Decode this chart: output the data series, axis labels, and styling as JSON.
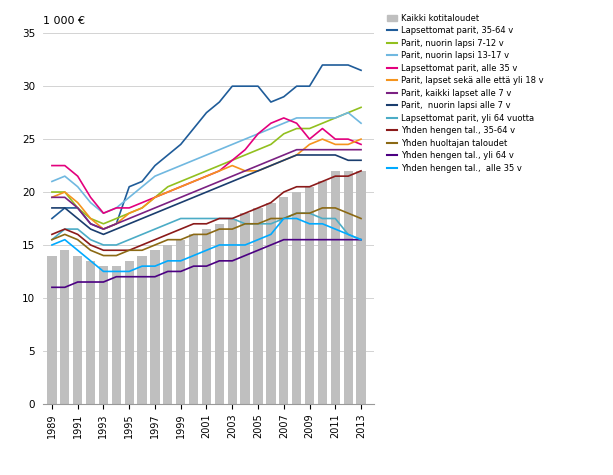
{
  "years": [
    1989,
    1990,
    1991,
    1992,
    1993,
    1994,
    1995,
    1996,
    1997,
    1998,
    1999,
    2000,
    2001,
    2002,
    2003,
    2004,
    2005,
    2006,
    2007,
    2008,
    2009,
    2010,
    2011,
    2012,
    2013
  ],
  "bar_values": [
    14.0,
    14.5,
    14.0,
    13.5,
    13.0,
    13.0,
    13.5,
    14.0,
    14.5,
    15.0,
    15.5,
    16.0,
    16.5,
    17.0,
    17.5,
    18.0,
    18.5,
    19.0,
    19.5,
    20.0,
    20.5,
    21.0,
    22.0,
    22.0,
    22.0
  ],
  "series": [
    {
      "label": "Lapsettomat parit, 35-64 v",
      "color": "#1F5C99",
      "values": [
        17.5,
        18.5,
        18.5,
        17.0,
        16.5,
        17.0,
        20.5,
        21.0,
        22.5,
        23.5,
        24.5,
        26.0,
        27.5,
        28.5,
        30.0,
        30.0,
        30.0,
        28.5,
        29.0,
        30.0,
        30.0,
        32.0,
        32.0,
        32.0,
        31.5
      ]
    },
    {
      "label": "Parit, nuorin lapsi 7-12 v",
      "color": "#92C01F",
      "values": [
        20.0,
        20.0,
        18.5,
        17.5,
        17.0,
        17.5,
        18.0,
        18.5,
        19.5,
        20.5,
        21.0,
        21.5,
        22.0,
        22.5,
        23.0,
        23.5,
        24.0,
        24.5,
        25.5,
        26.0,
        26.0,
        26.5,
        27.0,
        27.5,
        28.0
      ]
    },
    {
      "label": "Parit, nuorin lapsi 13-17 v",
      "color": "#70B8E0",
      "values": [
        21.0,
        21.5,
        20.5,
        19.0,
        18.0,
        18.5,
        19.5,
        20.5,
        21.5,
        22.0,
        22.5,
        23.0,
        23.5,
        24.0,
        24.5,
        25.0,
        25.5,
        26.0,
        26.5,
        27.0,
        27.0,
        27.0,
        27.0,
        27.5,
        26.5
      ]
    },
    {
      "label": "Lapsettomat parit, alle 35 v",
      "color": "#E3007D",
      "values": [
        22.5,
        22.5,
        21.5,
        19.5,
        18.0,
        18.5,
        18.5,
        19.0,
        19.5,
        20.0,
        20.5,
        21.0,
        21.5,
        22.0,
        23.0,
        24.0,
        25.5,
        26.5,
        27.0,
        26.5,
        25.0,
        26.0,
        25.0,
        25.0,
        24.5
      ]
    },
    {
      "label": "Parit, lapset sekä alle että yli 18 v",
      "color": "#F5941D",
      "values": [
        19.5,
        20.0,
        19.0,
        17.5,
        16.5,
        17.0,
        18.0,
        18.5,
        19.5,
        20.0,
        20.5,
        21.0,
        21.5,
        22.0,
        22.5,
        22.0,
        22.0,
        22.5,
        23.0,
        23.5,
        24.5,
        25.0,
        24.5,
        24.5,
        25.0
      ]
    },
    {
      "label": "Parit, kaikki lapset alle 7 v",
      "color": "#7B2182",
      "values": [
        19.5,
        19.5,
        18.5,
        17.0,
        16.5,
        17.0,
        17.5,
        18.0,
        18.5,
        19.0,
        19.5,
        20.0,
        20.5,
        21.0,
        21.5,
        22.0,
        22.5,
        23.0,
        23.5,
        24.0,
        24.0,
        24.0,
        24.0,
        24.0,
        24.0
      ]
    },
    {
      "label": "Parit,  nuorin lapsi alle 7 v",
      "color": "#1A3D6E",
      "values": [
        18.5,
        18.5,
        17.5,
        16.5,
        16.0,
        16.5,
        17.0,
        17.5,
        18.0,
        18.5,
        19.0,
        19.5,
        20.0,
        20.5,
        21.0,
        21.5,
        22.0,
        22.5,
        23.0,
        23.5,
        23.5,
        23.5,
        23.5,
        23.0,
        23.0
      ]
    },
    {
      "label": "Lapsettomat parit, yli 64 vuotta",
      "color": "#4BACC6",
      "values": [
        15.5,
        16.5,
        16.5,
        15.5,
        15.0,
        15.0,
        15.5,
        16.0,
        16.5,
        17.0,
        17.5,
        17.5,
        17.5,
        17.5,
        17.5,
        17.0,
        17.0,
        17.0,
        17.5,
        18.0,
        18.0,
        17.5,
        17.5,
        16.0,
        15.5
      ]
    },
    {
      "label": "Yhden hengen tal., 35-64 v",
      "color": "#8B1A1A",
      "values": [
        16.0,
        16.5,
        16.0,
        15.0,
        14.5,
        14.5,
        14.5,
        15.0,
        15.5,
        16.0,
        16.5,
        17.0,
        17.0,
        17.5,
        17.5,
        18.0,
        18.5,
        19.0,
        20.0,
        20.5,
        20.5,
        21.0,
        21.5,
        21.5,
        22.0
      ]
    },
    {
      "label": "Yhden huoltajan taloudet",
      "color": "#8B6914",
      "values": [
        15.5,
        16.0,
        15.5,
        14.5,
        14.0,
        14.0,
        14.5,
        14.5,
        15.0,
        15.5,
        15.5,
        16.0,
        16.0,
        16.5,
        16.5,
        17.0,
        17.0,
        17.5,
        17.5,
        18.0,
        18.0,
        18.5,
        18.5,
        18.0,
        17.5
      ]
    },
    {
      "label": "Yhden hengen tal., yli 64 v",
      "color": "#4B0082",
      "values": [
        11.0,
        11.0,
        11.5,
        11.5,
        11.5,
        12.0,
        12.0,
        12.0,
        12.0,
        12.5,
        12.5,
        13.0,
        13.0,
        13.5,
        13.5,
        14.0,
        14.5,
        15.0,
        15.5,
        15.5,
        15.5,
        15.5,
        15.5,
        15.5,
        15.5
      ]
    },
    {
      "label": "Yhden hengen tal.,  alle 35 v",
      "color": "#00AAFF",
      "values": [
        15.0,
        15.5,
        14.5,
        13.5,
        12.5,
        12.5,
        12.5,
        13.0,
        13.0,
        13.5,
        13.5,
        14.0,
        14.5,
        15.0,
        15.0,
        15.0,
        15.5,
        16.0,
        17.5,
        17.5,
        17.0,
        17.0,
        16.5,
        16.0,
        15.5
      ]
    }
  ],
  "bar_color": "#BFBFBF",
  "bar_label": "Kaikki kotitaloudet",
  "ylabel": "1 000 €",
  "ylim": [
    0,
    35
  ],
  "yticks": [
    0,
    5,
    10,
    15,
    20,
    25,
    30,
    35
  ],
  "xticks": [
    1989,
    1991,
    1993,
    1995,
    1997,
    1999,
    2001,
    2003,
    2005,
    2007,
    2009,
    2011,
    2013
  ],
  "background_color": "#ffffff"
}
